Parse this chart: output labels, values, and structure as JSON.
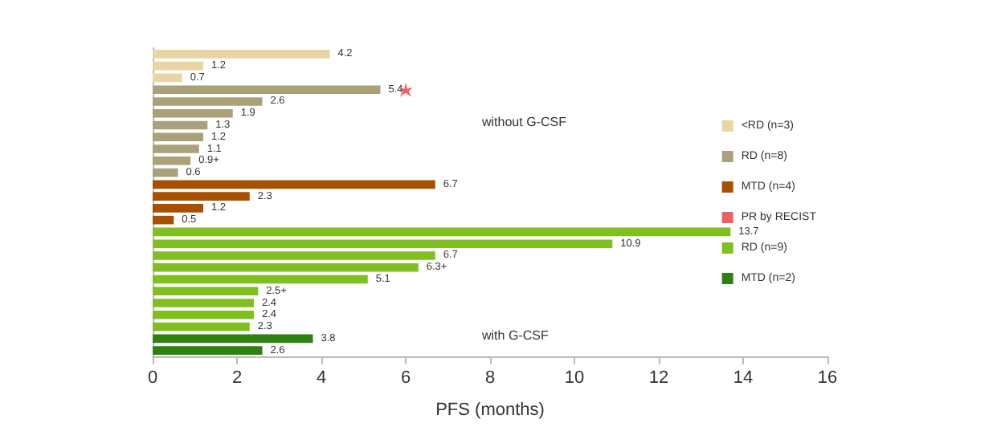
{
  "chart_data": {
    "type": "bar",
    "orientation": "horizontal",
    "stacked": true,
    "xlabel": "PFS (months)",
    "categories": [
      null,
      null,
      null,
      null,
      null,
      null,
      null,
      null,
      null,
      null,
      null,
      null,
      null,
      null,
      null,
      null,
      null,
      null,
      null,
      null,
      null,
      null,
      null,
      null,
      null,
      null
    ],
    "xlim": [
      0,
      16
    ],
    "xticks": [
      0,
      2,
      4,
      6,
      8,
      10,
      12,
      14,
      16
    ],
    "legend": "right",
    "grid": false,
    "marker": "star",
    "annotations": [
      "without G-CSF",
      "with G-CSF"
    ],
    "series": [
      {
        "name": "<RD (n=3)",
        "color": "#e8d5a3",
        "values": [
          4.2,
          1.2,
          0.7,
          null,
          null,
          null,
          null,
          null,
          null,
          null,
          null,
          null,
          null,
          null,
          null,
          null,
          null,
          null,
          null,
          null,
          null,
          null,
          null,
          null,
          null,
          null
        ],
        "value_labels": [
          "4.2",
          "1.2",
          "0.7",
          null,
          null,
          null,
          null,
          null,
          null,
          null,
          null,
          null,
          null,
          null,
          null,
          null,
          null,
          null,
          null,
          null,
          null,
          null,
          null,
          null,
          null,
          null
        ]
      },
      {
        "name": "RD (n=8)",
        "color": "#aaa079",
        "values": [
          null,
          null,
          null,
          5.4,
          2.6,
          1.9,
          1.3,
          1.2,
          1.1,
          0.9,
          0.6,
          null,
          null,
          null,
          null,
          null,
          null,
          null,
          null,
          null,
          null,
          null,
          null,
          null,
          null,
          null
        ],
        "value_labels": [
          null,
          null,
          null,
          "5.4",
          "2.6",
          "1.9",
          "1.3",
          "1.2",
          "1.1",
          "0.9+",
          "0.6",
          null,
          null,
          null,
          null,
          null,
          null,
          null,
          null,
          null,
          null,
          null,
          null,
          null,
          null,
          null
        ]
      },
      {
        "name": "MTD (n=4)",
        "color": "#a65000",
        "values": [
          null,
          null,
          null,
          null,
          null,
          null,
          null,
          null,
          null,
          null,
          null,
          6.7,
          2.3,
          1.2,
          0.5,
          null,
          null,
          null,
          null,
          null,
          null,
          null,
          null,
          null,
          null,
          null
        ],
        "value_labels": [
          null,
          null,
          null,
          null,
          null,
          null,
          null,
          null,
          null,
          null,
          null,
          "6.7",
          "2.3",
          "1.2",
          "0.5",
          null,
          null,
          null,
          null,
          null,
          null,
          null,
          null,
          null,
          null,
          null
        ]
      },
      {
        "name": "PR by RECIST",
        "type": "scatter",
        "color": "#e8383d",
        "values": [
          null,
          null,
          null,
          6.0,
          null,
          null,
          null,
          null,
          null,
          null,
          null,
          null,
          null,
          null,
          null,
          null,
          null,
          null,
          null,
          null,
          null,
          null,
          null,
          null,
          null,
          null
        ]
      },
      {
        "name": "RD (n=9)",
        "color": "#7fbf1f",
        "values": [
          null,
          null,
          null,
          null,
          null,
          null,
          null,
          null,
          null,
          null,
          null,
          null,
          null,
          null,
          null,
          13.7,
          10.9,
          6.7,
          6.3,
          5.1,
          2.5,
          2.4,
          2.4,
          2.3,
          null,
          null
        ],
        "value_labels": [
          null,
          null,
          null,
          null,
          null,
          null,
          null,
          null,
          null,
          null,
          null,
          null,
          null,
          null,
          null,
          "13.7",
          "10.9",
          "6.7",
          "6.3+",
          "5.1",
          "2.5+",
          "2.4",
          "2.4",
          "2.3",
          null,
          null
        ]
      },
      {
        "name": "MTD (n=2)",
        "color": "#2e8010",
        "values": [
          null,
          null,
          null,
          null,
          null,
          null,
          null,
          null,
          null,
          null,
          null,
          null,
          null,
          null,
          null,
          null,
          null,
          null,
          null,
          null,
          null,
          null,
          null,
          null,
          3.8,
          2.6
        ],
        "value_labels": [
          null,
          null,
          null,
          null,
          null,
          null,
          null,
          null,
          null,
          null,
          null,
          null,
          null,
          null,
          null,
          null,
          null,
          null,
          null,
          null,
          null,
          null,
          null,
          null,
          "3.8",
          "2.6"
        ]
      }
    ]
  }
}
